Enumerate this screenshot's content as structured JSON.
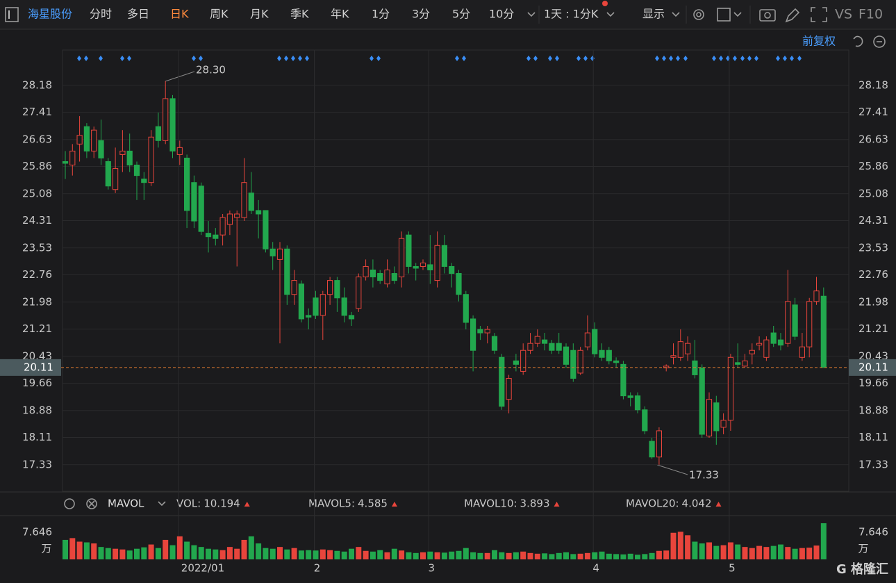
{
  "toolbar": {
    "stock": "海星股份",
    "tabs": [
      "分时",
      "多日",
      "日K",
      "周K",
      "月K",
      "季K",
      "年K",
      "1分",
      "3分",
      "5分",
      "10分"
    ],
    "period": "1天 : 1分K",
    "display": "显示",
    "vs": "VS",
    "f10": "F10",
    "adjust": "前复权"
  },
  "chart_data": [
    {
      "type": "candlestick",
      "up_color": "#e8453c",
      "down_color": "#22a84e",
      "grid": true,
      "categories": [
        null,
        null,
        null,
        null,
        null,
        null,
        null,
        null,
        null,
        null,
        null,
        null,
        null,
        null,
        null,
        null,
        "2022/01",
        null,
        null,
        null,
        null,
        null,
        null,
        null,
        null,
        null,
        null,
        null,
        null,
        null,
        null,
        null,
        null,
        null,
        null,
        "2",
        null,
        null,
        null,
        null,
        null,
        null,
        null,
        null,
        null,
        null,
        null,
        null,
        null,
        null,
        null,
        "3",
        null,
        null,
        null,
        null,
        null,
        null,
        null,
        null,
        null,
        null,
        null,
        null,
        null,
        null,
        null,
        null,
        null,
        null,
        null,
        null,
        null,
        null,
        "4",
        null,
        null,
        null,
        null,
        null,
        null,
        null,
        null,
        null,
        null,
        null,
        null,
        null,
        null,
        null,
        null,
        null,
        null,
        "5",
        null,
        null,
        null,
        null,
        null,
        null,
        null,
        null,
        null,
        null,
        null,
        null,
        null
      ],
      "open": [
        26.0,
        25.9,
        26.5,
        27.0,
        26.3,
        26.6,
        26.0,
        25.2,
        26.2,
        26.3,
        25.9,
        25.5,
        25.4,
        27.0,
        26.6,
        27.8,
        26.2,
        26.1,
        25.4,
        25.3,
        23.95,
        23.9,
        23.9,
        24.2,
        24.4,
        24.4,
        25.1,
        24.6,
        24.6,
        23.5,
        23.2,
        23.5,
        22.2,
        22.5,
        21.6,
        22.1,
        21.6,
        22.2,
        22.6,
        22.1,
        21.6,
        21.8,
        22.7,
        22.9,
        22.8,
        22.5,
        22.8,
        22.7,
        23.9,
        23.0,
        23.0,
        23.05,
        22.6,
        23.6,
        23.0,
        22.8,
        22.2,
        21.5,
        21.2,
        21.1,
        21.0,
        20.4,
        19.2,
        20.3,
        20.0,
        20.6,
        20.8,
        20.9,
        20.8,
        20.8,
        20.7,
        20.6,
        19.95,
        20.7,
        21.2,
        20.6,
        20.6,
        20.3,
        20.2,
        19.3,
        19.3,
        18.9,
        18.0,
        17.55,
        20.1,
        20.4,
        20.4,
        20.5,
        20.3,
        20.1,
        18.15,
        19.1,
        18.4,
        18.6,
        20.25,
        20.15,
        20.5,
        20.75,
        20.4,
        21.1,
        20.9,
        20.8,
        21.9,
        20.4,
        20.7,
        22.0,
        22.15
      ],
      "high": [
        26.3,
        26.5,
        27.3,
        27.1,
        27.0,
        27.2,
        26.1,
        26.4,
        26.9,
        26.8,
        26.0,
        25.7,
        26.9,
        27.4,
        28.3,
        27.9,
        26.6,
        26.2,
        25.6,
        25.4,
        24.3,
        24.1,
        24.5,
        24.6,
        24.6,
        26.1,
        25.7,
        24.9,
        24.6,
        23.7,
        23.7,
        23.6,
        22.9,
        22.6,
        21.8,
        22.3,
        22.3,
        22.7,
        22.7,
        22.4,
        21.7,
        22.8,
        23.2,
        23.2,
        22.9,
        23.2,
        23.0,
        24.0,
        24.0,
        23.1,
        23.2,
        23.9,
        24.0,
        23.9,
        23.1,
        22.9,
        22.3,
        21.6,
        21.3,
        21.3,
        21.1,
        20.5,
        19.9,
        20.5,
        20.8,
        21.1,
        21.2,
        21.1,
        20.9,
        21.1,
        20.8,
        20.8,
        20.7,
        21.6,
        21.4,
        20.8,
        20.7,
        20.4,
        20.3,
        19.4,
        19.4,
        19.0,
        18.1,
        18.4,
        20.2,
        20.8,
        21.2,
        21.0,
        20.9,
        20.2,
        19.4,
        19.3,
        18.8,
        20.5,
        20.8,
        20.5,
        20.8,
        21.0,
        21.0,
        21.3,
        21.1,
        22.9,
        22.1,
        21.1,
        22.1,
        22.7,
        22.4
      ],
      "low": [
        25.5,
        25.6,
        26.0,
        26.1,
        26.1,
        25.9,
        25.2,
        25.1,
        25.7,
        25.7,
        24.9,
        24.9,
        25.3,
        26.4,
        26.5,
        26.1,
        25.9,
        24.1,
        24.1,
        23.9,
        23.4,
        23.6,
        23.6,
        23.9,
        23.0,
        24.3,
        24.5,
        23.8,
        23.4,
        22.9,
        20.8,
        21.9,
        21.9,
        21.4,
        21.2,
        21.5,
        20.9,
        21.9,
        21.7,
        21.4,
        21.3,
        21.7,
        22.6,
        22.4,
        22.5,
        22.4,
        22.5,
        22.4,
        22.8,
        22.6,
        22.9,
        22.5,
        22.4,
        22.8,
        22.4,
        22.0,
        21.2,
        20.0,
        20.9,
        20.8,
        20.5,
        18.9,
        18.8,
        20.0,
        19.9,
        20.5,
        20.7,
        20.6,
        20.5,
        20.5,
        20.1,
        19.7,
        19.9,
        20.6,
        20.4,
        20.3,
        20.2,
        20.1,
        19.2,
        19.0,
        18.8,
        18.2,
        17.5,
        17.33,
        20.0,
        20.2,
        20.3,
        20.3,
        19.8,
        18.1,
        18.1,
        17.9,
        18.2,
        18.3,
        20.1,
        20.1,
        20.2,
        20.6,
        20.3,
        20.7,
        20.6,
        20.7,
        20.9,
        20.3,
        20.4,
        21.9,
        20.11
      ],
      "close": [
        25.95,
        26.3,
        26.75,
        26.3,
        26.9,
        26.1,
        25.3,
        25.8,
        26.3,
        25.9,
        25.6,
        25.4,
        26.7,
        26.6,
        27.8,
        26.3,
        26.4,
        24.6,
        24.3,
        24.0,
        23.85,
        23.8,
        24.4,
        24.5,
        24.5,
        25.4,
        24.6,
        24.5,
        23.5,
        23.3,
        23.5,
        22.2,
        22.6,
        21.5,
        21.55,
        21.6,
        22.2,
        22.6,
        22.1,
        21.6,
        21.5,
        22.7,
        23.0,
        22.7,
        22.6,
        22.9,
        22.6,
        23.8,
        23.0,
        22.95,
        23.1,
        22.9,
        23.6,
        23.0,
        22.8,
        22.2,
        21.4,
        20.6,
        21.1,
        21.2,
        20.6,
        19.0,
        19.8,
        20.2,
        20.6,
        20.8,
        21.0,
        20.8,
        20.6,
        20.6,
        20.2,
        19.8,
        20.6,
        21.1,
        20.5,
        20.4,
        20.3,
        20.25,
        19.3,
        19.25,
        18.9,
        18.3,
        17.55,
        18.3,
        20.15,
        20.45,
        20.85,
        20.8,
        19.9,
        18.2,
        19.2,
        18.3,
        18.6,
        20.4,
        20.2,
        20.3,
        20.6,
        20.8,
        20.9,
        20.8,
        20.75,
        22.0,
        21.0,
        20.7,
        22.0,
        22.3,
        20.11
      ],
      "max_label": "28.30",
      "min_label": "17.33",
      "last_price": 20.11,
      "ylim": [
        16.61,
        29.13
      ],
      "yticks": [
        28.18,
        27.41,
        26.63,
        25.86,
        25.08,
        24.31,
        23.53,
        22.76,
        21.98,
        21.21,
        20.43,
        19.66,
        18.88,
        18.11,
        17.33
      ]
    },
    {
      "type": "bar",
      "indicator": "MAVOL",
      "y_unit": "万",
      "legend": [
        {
          "name": "VOL:",
          "value": 10.194,
          "color": "#ffffff"
        },
        {
          "name": "MAVOL5:",
          "value": 4.585,
          "color": "#f0a030"
        },
        {
          "name": "MAVOL10:",
          "value": 3.893,
          "color": "#2aa9e0"
        },
        {
          "name": "MAVOL20:",
          "value": 4.042,
          "color": "#e060e0"
        }
      ],
      "values": [
        5.5,
        6.0,
        5.0,
        4.8,
        4.5,
        3.5,
        3.2,
        3.0,
        2.8,
        2.5,
        3.0,
        3.4,
        4.2,
        3.2,
        5.5,
        4.0,
        6.5,
        5.0,
        4.0,
        3.5,
        3.0,
        2.8,
        2.6,
        3.5,
        3.0,
        5.5,
        6.5,
        4.5,
        3.2,
        3.0,
        3.5,
        2.8,
        3.2,
        2.5,
        2.6,
        2.5,
        2.8,
        2.6,
        2.4,
        2.2,
        3.0,
        3.5,
        2.4,
        2.2,
        2.6,
        2.0,
        3.0,
        2.5,
        2.0,
        1.8,
        2.0,
        2.2,
        2.0,
        1.9,
        2.2,
        2.4,
        3.2,
        2.0,
        1.8,
        1.8,
        2.6,
        2.0,
        1.8,
        2.0,
        2.2,
        1.8,
        1.6,
        1.7,
        1.5,
        1.8,
        2.0,
        1.5,
        1.6,
        1.8,
        2.0,
        2.2,
        1.6,
        1.5,
        1.4,
        1.6,
        1.3,
        1.5,
        1.8,
        2.4,
        2.5,
        7.5,
        7.8,
        6.8,
        5.0,
        4.5,
        4.8,
        3.8,
        4.0,
        4.8,
        4.2,
        3.5,
        3.2,
        3.8,
        3.5,
        3.8,
        4.2,
        3.5,
        3.0,
        3.2,
        3.3,
        3.9,
        10.194
      ],
      "ylim": [
        0,
        10.78
      ],
      "yticks": [
        7.646
      ]
    }
  ]
}
